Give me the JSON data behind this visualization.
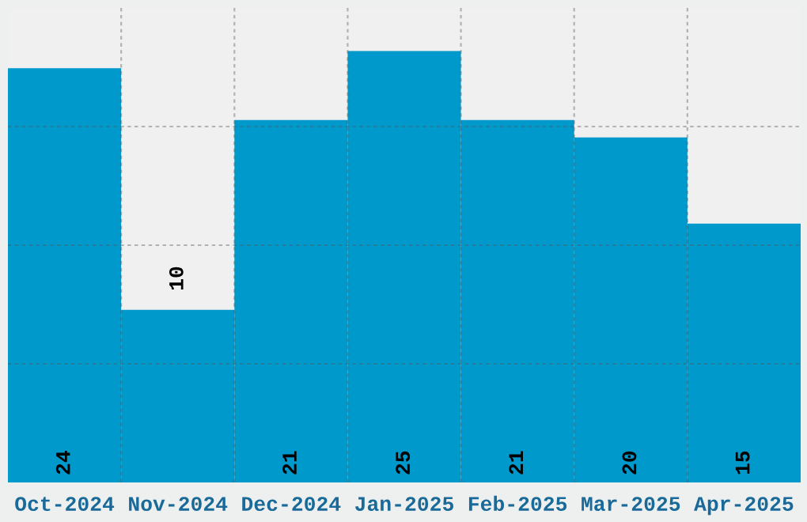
{
  "chart_data": {
    "type": "bar",
    "categories": [
      "Oct-2024",
      "Nov-2024",
      "Dec-2024",
      "Jan-2025",
      "Feb-2025",
      "Mar-2025",
      "Apr-2025"
    ],
    "values": [
      24,
      10,
      21,
      25,
      21,
      20,
      15
    ],
    "color": "#0099cc",
    "ylim": [
      0,
      27.5
    ],
    "yticks": [
      {
        "value": 6.875,
        "label": null
      },
      {
        "value": 13.75,
        "label": null
      },
      {
        "value": 20.625,
        "label": null
      }
    ],
    "tick_labels": "x",
    "grid": true,
    "data_labels": true
  }
}
